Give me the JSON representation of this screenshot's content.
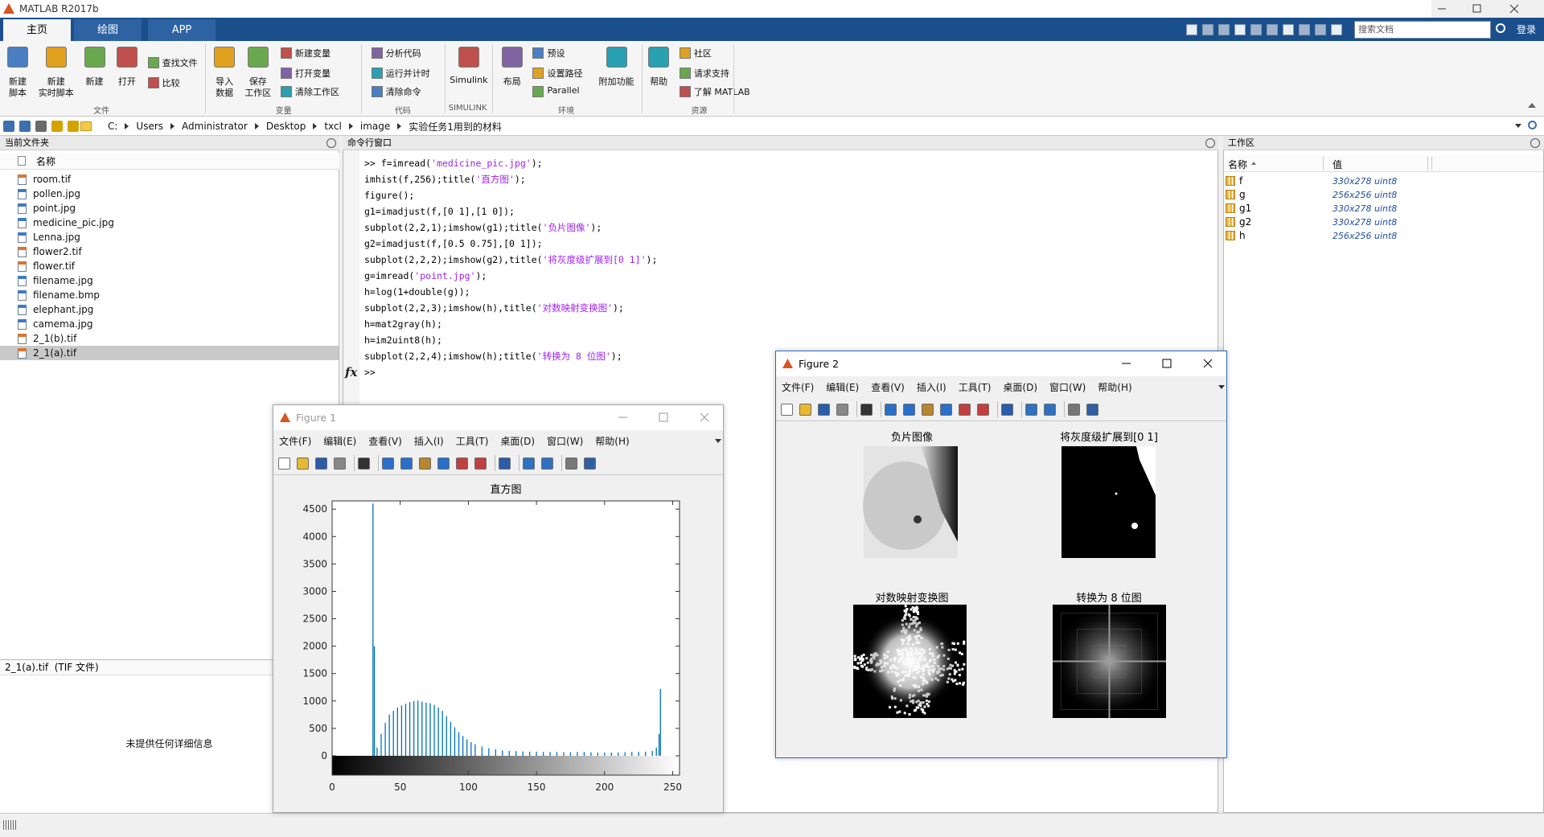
{
  "window_title": "MATLAB R2017b",
  "tabs": [
    "主页",
    "绘图",
    "APP"
  ],
  "toolstrip": {
    "groups": [
      {
        "label": "文件",
        "buttons": [
          {
            "lines": [
              "新建",
              "脚本"
            ]
          },
          {
            "lines": [
              "新建",
              "实时脚本"
            ]
          },
          {
            "lines": [
              "新建"
            ]
          },
          {
            "lines": [
              "打开"
            ]
          }
        ],
        "small": [
          "查找文件",
          "比较"
        ]
      },
      {
        "label": "变量",
        "buttons": [
          {
            "lines": [
              "导入",
              "数据"
            ]
          },
          {
            "lines": [
              "保存",
              "工作区"
            ]
          }
        ],
        "small": [
          "新建变量",
          "打开变量",
          "清除工作区"
        ]
      },
      {
        "label": "代码",
        "buttons": [],
        "small": [
          "分析代码",
          "运行并计时",
          "清除命令"
        ]
      },
      {
        "label": "SIMULINK",
        "buttons": [
          {
            "lines": [
              "Simulink"
            ]
          }
        ],
        "small": []
      },
      {
        "label": "环境",
        "buttons": [
          {
            "lines": [
              "布局"
            ]
          },
          {
            "lines": [
              "附加功能"
            ]
          }
        ],
        "small": [
          "预设",
          "设置路径",
          "Parallel"
        ]
      },
      {
        "label": "资源",
        "buttons": [
          {
            "lines": [
              "帮助"
            ]
          }
        ],
        "small": [
          "社区",
          "请求支持",
          "了解 MATLAB"
        ]
      }
    ]
  },
  "search_placeholder": "搜索文档",
  "login": "登录",
  "address": [
    "C:",
    "Users",
    "Administrator",
    "Desktop",
    "txcl",
    "image",
    "实验任务1用到的材料"
  ],
  "current_folder": {
    "title": "当前文件夹",
    "column": "名称",
    "files": [
      "room.tif",
      "pollen.jpg",
      "point.jpg",
      "medicine_pic.jpg",
      "Lenna.jpg",
      "flower2.tif",
      "flower.tif",
      "filename.jpg",
      "filename.bmp",
      "elephant.jpg",
      "camema.jpg",
      "2_1(b).tif",
      "2_1(a).tif"
    ],
    "details_title": "2_1(a).tif  (TIF 文件)",
    "details_text": "未提供任何详细信息"
  },
  "command_window": {
    "title": "命令行窗口",
    "lines": [
      [
        ">> f=imread(",
        "'medicine_pic.jpg'",
        ");"
      ],
      [
        "imhist(f,256);title(",
        "'直方图'",
        ");"
      ],
      [
        "figure();"
      ],
      [
        "g1=imadjust(f,[0 1],[1 0]);"
      ],
      [
        "subplot(2,2,1);imshow(g1);title(",
        "'负片图像'",
        ");"
      ],
      [
        "g2=imadjust(f,[0.5 0.75],[0 1]);"
      ],
      [
        "subplot(2,2,2);imshow(g2),title(",
        "'将灰度级扩展到[0 1]'",
        ");"
      ],
      [
        "g=imread(",
        "'point.jpg'",
        ");"
      ],
      [
        "h=log(1+double(g));"
      ],
      [
        "subplot(2,2,3);imshow(h),title(",
        "'对数映射变换图'",
        ");"
      ],
      [
        "h=mat2gray(h);"
      ],
      [
        "h=im2uint8(h);"
      ],
      [
        "subplot(2,2,4);imshow(h);title(",
        "'转换为 8 位图'",
        ");"
      ]
    ],
    "prompt": ">>",
    "fx": "fx"
  },
  "workspace": {
    "title": "工作区",
    "columns": [
      "名称",
      "值"
    ],
    "variables": [
      {
        "name": "f",
        "value": "330x278 uint8"
      },
      {
        "name": "g",
        "value": "256x256 uint8"
      },
      {
        "name": "g1",
        "value": "330x278 uint8"
      },
      {
        "name": "g2",
        "value": "330x278 uint8"
      },
      {
        "name": "h",
        "value": "256x256 uint8"
      }
    ]
  },
  "figure1": {
    "title": "Figure 1",
    "menu": [
      "文件(F)",
      "编辑(E)",
      "查看(V)",
      "插入(I)",
      "工具(T)",
      "桌面(D)",
      "窗口(W)",
      "帮助(H)"
    ]
  },
  "figure2": {
    "title": "Figure 2",
    "menu": [
      "文件(F)",
      "编辑(E)",
      "查看(V)",
      "插入(I)",
      "工具(T)",
      "桌面(D)",
      "窗口(W)",
      "帮助(H)"
    ],
    "subplot_titles": [
      "负片图像",
      "将灰度级扩展到[0 1]",
      "对数映射变换图",
      "转换为 8 位图"
    ]
  },
  "chart_data": {
    "type": "stem",
    "title": "直方图",
    "color": "#0072bd",
    "grid": false,
    "x": [
      30,
      31,
      33,
      36,
      39,
      42,
      45,
      48,
      51,
      54,
      57,
      60,
      63,
      66,
      69,
      72,
      75,
      78,
      81,
      84,
      87,
      90,
      93,
      96,
      99,
      102,
      105,
      110,
      115,
      120,
      125,
      130,
      135,
      140,
      145,
      150,
      155,
      160,
      165,
      170,
      175,
      180,
      185,
      190,
      195,
      200,
      205,
      210,
      215,
      220,
      225,
      230,
      235,
      238,
      240,
      241
    ],
    "values": [
      4600,
      2000,
      150,
      400,
      600,
      750,
      820,
      880,
      920,
      950,
      980,
      1000,
      1010,
      990,
      970,
      960,
      930,
      880,
      820,
      720,
      620,
      520,
      430,
      360,
      300,
      250,
      210,
      170,
      140,
      120,
      100,
      90,
      85,
      80,
      75,
      75,
      70,
      70,
      70,
      65,
      65,
      70,
      70,
      65,
      60,
      60,
      60,
      60,
      65,
      70,
      70,
      75,
      90,
      150,
      400,
      1220
    ],
    "xlim": [
      0,
      255
    ],
    "ylim": [
      0,
      4650
    ],
    "xticks": [
      0,
      50,
      100,
      150,
      200,
      250
    ],
    "yticks": [
      0,
      500,
      1000,
      1500,
      2000,
      2500,
      3000,
      3500,
      4000,
      4500
    ]
  }
}
